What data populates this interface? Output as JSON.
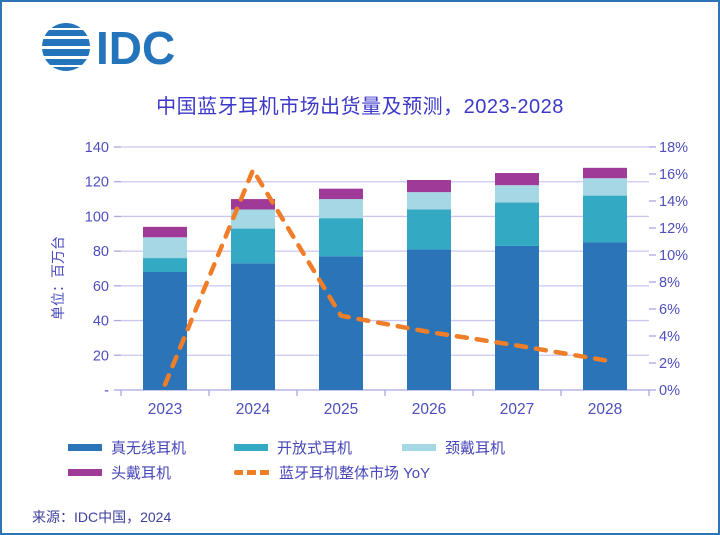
{
  "logo": {
    "text": "IDC",
    "brand_color": "#2374bb"
  },
  "title": "中国蓝牙耳机市场出货量及预测，2023-2028",
  "y_axis": {
    "title": "单位：百万台",
    "tick_labels": [
      "-",
      "20",
      "40",
      "60",
      "80",
      "100",
      "120",
      "140"
    ],
    "min": 0,
    "max": 140,
    "step": 20
  },
  "y2_axis": {
    "tick_labels": [
      "0%",
      "2%",
      "4%",
      "6%",
      "8%",
      "10%",
      "12%",
      "14%",
      "16%",
      "18%"
    ],
    "min": 0,
    "max": 18,
    "step": 2
  },
  "chart_data": {
    "type": "bar",
    "subtype": "stacked-bars-with-line",
    "title": "中国蓝牙耳机市场出货量及预测，2023-2028",
    "ylabel": "单位：百万台",
    "ylim": [
      0,
      140
    ],
    "y2lim": [
      0,
      18
    ],
    "grid": true,
    "legend_position": "bottom",
    "categories": [
      "2023",
      "2024",
      "2025",
      "2026",
      "2027",
      "2028"
    ],
    "series": [
      {
        "name": "真无线耳机",
        "type": "bar",
        "color": "#2b74b8",
        "values": [
          68,
          73,
          77,
          81,
          83,
          85
        ]
      },
      {
        "name": "开放式耳机",
        "type": "bar",
        "color": "#33a9c3",
        "values": [
          8,
          20,
          22,
          23,
          25,
          27
        ]
      },
      {
        "name": "颈戴耳机",
        "type": "bar",
        "color": "#a6d7e4",
        "values": [
          12,
          11,
          11,
          10,
          10,
          10
        ]
      },
      {
        "name": "头戴耳机",
        "type": "bar",
        "color": "#a03a98",
        "values": [
          6,
          6,
          6,
          7,
          7,
          6
        ]
      },
      {
        "name": "蓝牙耳机整体市场 YoY",
        "type": "line",
        "style": "dashed",
        "axis": "right",
        "color": "#f07e28",
        "values": [
          0.4,
          16.3,
          5.5,
          4.3,
          3.3,
          2.2
        ]
      }
    ],
    "stacked_totals": [
      94,
      110,
      116,
      121,
      125,
      128
    ]
  },
  "legend": {
    "items": [
      {
        "label": "真无线耳机",
        "color": "#2b74b8",
        "type": "bar"
      },
      {
        "label": "开放式耳机",
        "color": "#33a9c3",
        "type": "bar"
      },
      {
        "label": "颈戴耳机",
        "color": "#a6d7e4",
        "type": "bar"
      },
      {
        "label": "头戴耳机",
        "color": "#a03a98",
        "type": "bar"
      },
      {
        "label": "蓝牙耳机整体市场 YoY",
        "color": "#f07e28",
        "type": "dashed-line"
      }
    ]
  },
  "source": "来源：IDC中国，2024",
  "colors": {
    "border": "#2e75b6",
    "title_text": "#3c38c8",
    "axis_text": "#4e4ebe",
    "gridline": "#cbc7f0",
    "axis_line": "#a9a6df",
    "brand_blue": "#2374bb"
  }
}
